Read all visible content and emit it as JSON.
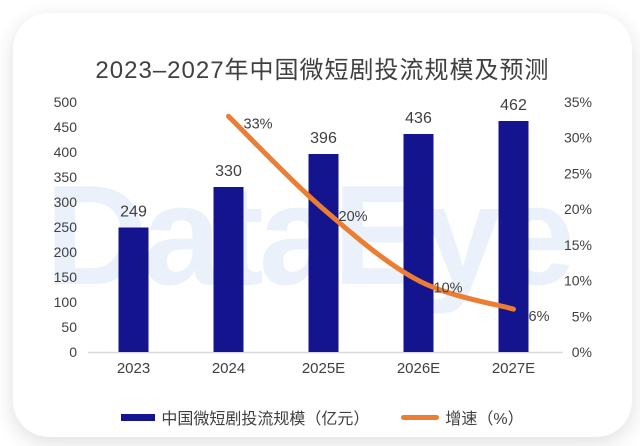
{
  "chart_data": {
    "type": "bar",
    "title": "2023–2027年中国微短剧投流规模及预测",
    "categories": [
      "2023",
      "2024",
      "2025E",
      "2026E",
      "2027E"
    ],
    "series": [
      {
        "name": "中国微短剧投流规模（亿元）",
        "type": "bar",
        "axis": "left",
        "color": "#14148F",
        "values": [
          249,
          330,
          396,
          436,
          462
        ],
        "labels": [
          "249",
          "330",
          "396",
          "436",
          "462"
        ]
      },
      {
        "name": "增速（%）",
        "type": "line",
        "axis": "right",
        "color": "#ED7D31",
        "values": [
          null,
          33,
          20,
          10,
          6
        ],
        "labels": [
          null,
          "33%",
          "20%",
          "10%",
          "6%"
        ]
      }
    ],
    "left_axis": {
      "min": 0,
      "max": 500,
      "step": 50,
      "ticks": [
        "500",
        "450",
        "400",
        "350",
        "300",
        "250",
        "200",
        "150",
        "100",
        "50",
        "0"
      ]
    },
    "right_axis": {
      "min": 0,
      "max": 35,
      "step": 5,
      "ticks": [
        "35%",
        "30%",
        "25%",
        "20%",
        "15%",
        "10%",
        "5%",
        "0%"
      ]
    },
    "grid": false,
    "legend_position": "bottom",
    "watermark": "DataEye",
    "text_color": "#404040",
    "axis_line_color": "#D9D9D9",
    "watermark_color": "#EAF1FA"
  }
}
